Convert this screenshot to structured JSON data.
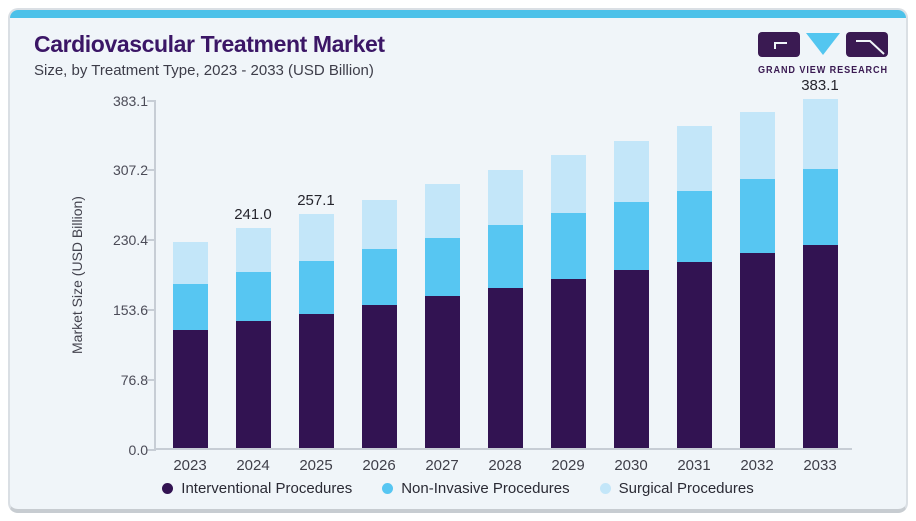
{
  "header": {
    "title": "Cardiovascular Treatment Market",
    "subtitle": "Size, by Treatment Type, 2023 - 2033 (USD Billion)",
    "logo_text": "GRAND VIEW RESEARCH"
  },
  "colors": {
    "accent_strip": "#4cc1e9",
    "card_background": "#f0f5f9",
    "card_border": "#dadfe4",
    "title_text": "#3b1666",
    "axis_line": "#c7cdd5",
    "logo_purple": "#3a1a52",
    "logo_cyan": "#53c6f0"
  },
  "chart_data": {
    "type": "bar",
    "stacked": true,
    "title": "Cardiovascular Treatment Market",
    "subtitle": "Size, by Treatment Type, 2023 - 2033 (USD Billion)",
    "xlabel": "",
    "ylabel": "Market Size (USD Billion)",
    "categories": [
      "2023",
      "2024",
      "2025",
      "2026",
      "2027",
      "2028",
      "2029",
      "2030",
      "2031",
      "2032",
      "2033"
    ],
    "series": [
      {
        "name": "Interventional Procedures",
        "color": "#321352",
        "values": [
          129.4,
          139.0,
          146.8,
          156.5,
          166.9,
          176.1,
          185.4,
          195.7,
          204.5,
          214.2,
          222.8
        ]
      },
      {
        "name": "Non-Invasive Procedures",
        "color": "#57c6f2",
        "values": [
          50.2,
          53.8,
          58.8,
          61.6,
          63.9,
          68.9,
          72.3,
          74.3,
          77.9,
          80.9,
          83.2
        ]
      },
      {
        "name": "Surgical Procedures",
        "color": "#c3e6f9",
        "values": [
          46.9,
          48.2,
          51.5,
          54.3,
          58.6,
          60.6,
          64.0,
          67.0,
          71.6,
          73.5,
          77.1
        ]
      }
    ],
    "totals": [
      226.5,
      241.0,
      257.1,
      272.4,
      289.4,
      305.6,
      321.7,
      337.0,
      354.0,
      368.6,
      383.1
    ],
    "bar_total_labels": [
      null,
      "241.0",
      "257.1",
      null,
      null,
      null,
      null,
      null,
      null,
      null,
      "383.1"
    ],
    "y_ticks": [
      0.0,
      76.8,
      153.6,
      230.4,
      307.2,
      383.1
    ],
    "y_tick_labels": [
      "0.0",
      "76.8",
      "153.6",
      "230.4",
      "307.2",
      "383.1"
    ],
    "ylim": [
      0,
      383.1
    ],
    "grid": false,
    "legend_position": "bottom"
  }
}
